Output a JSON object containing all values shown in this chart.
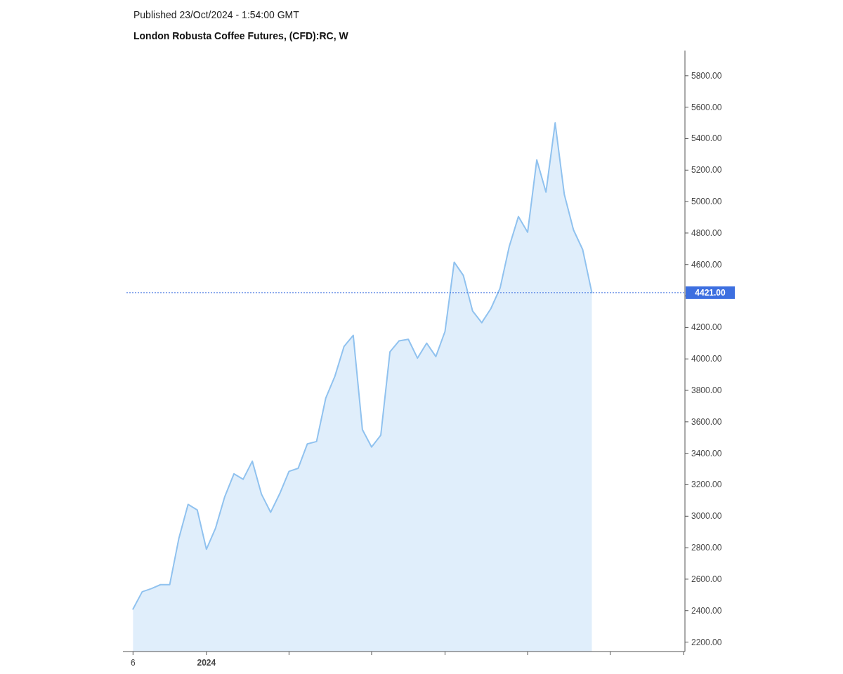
{
  "chart_data": {
    "type": "area",
    "title": "London Robusta Coffee Futures, (CFD):RC, W",
    "annotations": [
      "Published 23/Oct/2024 - 1:54:00 GMT"
    ],
    "x": [
      "2023-11-06",
      "2023-11-13",
      "2023-11-20",
      "2023-11-27",
      "2023-12-04",
      "2023-12-11",
      "2023-12-18",
      "2023-12-25",
      "2024-01-01",
      "2024-01-08",
      "2024-01-15",
      "2024-01-22",
      "2024-01-29",
      "2024-02-05",
      "2024-02-12",
      "2024-02-19",
      "2024-02-26",
      "2024-03-04",
      "2024-03-11",
      "2024-03-18",
      "2024-03-25",
      "2024-04-01",
      "2024-04-08",
      "2024-04-15",
      "2024-04-22",
      "2024-04-29",
      "2024-05-06",
      "2024-05-13",
      "2024-05-20",
      "2024-05-27",
      "2024-06-03",
      "2024-06-10",
      "2024-06-17",
      "2024-06-24",
      "2024-07-01",
      "2024-07-08",
      "2024-07-15",
      "2024-07-22",
      "2024-07-29",
      "2024-08-05",
      "2024-08-12",
      "2024-08-19",
      "2024-08-26",
      "2024-09-02",
      "2024-09-09",
      "2024-09-16",
      "2024-09-23",
      "2024-09-30",
      "2024-10-07",
      "2024-10-14",
      "2024-10-21"
    ],
    "series": [
      {
        "color": "#90c2ef",
        "values": [
          2410,
          2520,
          2540,
          2565,
          2565,
          2860,
          3075,
          3040,
          2790,
          2925,
          3125,
          3270,
          3235,
          3350,
          3140,
          3025,
          3145,
          3285,
          3305,
          3460,
          3475,
          3750,
          3890,
          4080,
          4150,
          3550,
          3440,
          3515,
          4045,
          4115,
          4125,
          4005,
          4100,
          4015,
          4175,
          4615,
          4530,
          4305,
          4230,
          4320,
          4450,
          4715,
          4905,
          4805,
          5265,
          5060,
          5500,
          5045,
          4820,
          4695,
          4421
        ]
      }
    ],
    "xlim": [
      "2023-11-01",
      "2024-12-31"
    ],
    "xticks": [
      {
        "value": "2023-11-06",
        "label": "6"
      },
      {
        "value": "2024-01-01",
        "label": "2024"
      },
      {
        "value": "2024-03-04",
        "label": null
      },
      {
        "value": "2024-05-06",
        "label": null
      },
      {
        "value": "2024-07-01",
        "label": null
      },
      {
        "value": "2024-09-02",
        "label": null
      },
      {
        "value": "2024-11-04",
        "label": null
      },
      {
        "value": "2024-12-30",
        "label": null
      }
    ],
    "ylim": [
      2140,
      5960
    ],
    "yticks": [
      {
        "value": 2200,
        "label": "2200.00"
      },
      {
        "value": 2400,
        "label": "2400.00"
      },
      {
        "value": 2600,
        "label": "2600.00"
      },
      {
        "value": 2800,
        "label": "2800.00"
      },
      {
        "value": 3000,
        "label": "3000.00"
      },
      {
        "value": 3200,
        "label": "3200.00"
      },
      {
        "value": 3400,
        "label": "3400.00"
      },
      {
        "value": 3600,
        "label": "3600.00"
      },
      {
        "value": 3800,
        "label": "3800.00"
      },
      {
        "value": 4000,
        "label": "4000.00"
      },
      {
        "value": 4200,
        "label": "4200.00"
      },
      {
        "value": 4400,
        "label": null
      },
      {
        "value": 4600,
        "label": "4600.00"
      },
      {
        "value": 4800,
        "label": "4800.00"
      },
      {
        "value": 5000,
        "label": "5000.00"
      },
      {
        "value": 5200,
        "label": "5200.00"
      },
      {
        "value": 5400,
        "label": "5400.00"
      },
      {
        "value": 5600,
        "label": "5600.00"
      },
      {
        "value": 5800,
        "label": "5800.00"
      }
    ],
    "ref_lines": [
      {
        "axis": "y",
        "value": 4421,
        "label": "4421.00",
        "color": "#3d6fe0",
        "line_style": "dotted"
      }
    ],
    "marker": "none",
    "line_style": "solid"
  }
}
